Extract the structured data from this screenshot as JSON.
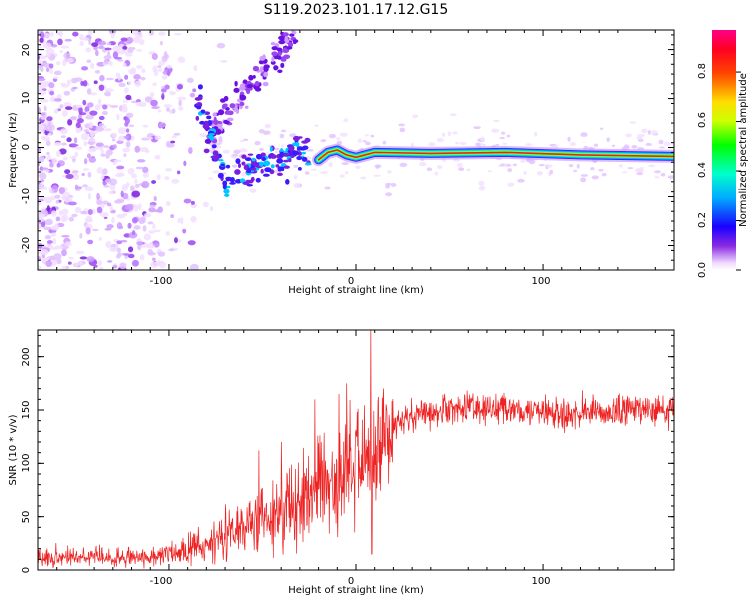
{
  "figure": {
    "title": "S119.2023.101.17.12.G15"
  },
  "chart_data": [
    {
      "type": "heatmap",
      "xlabel": "Height of straight line (km)",
      "ylabel": "Frequency (Hz)",
      "xlim": [
        -170,
        170
      ],
      "ylim": [
        -25,
        24
      ],
      "xticks": [
        -100,
        0,
        100
      ],
      "xtick_labels": [
        "-100",
        "0",
        "100"
      ],
      "yticks": [
        -20,
        -10,
        0,
        10,
        20
      ],
      "ytick_labels": [
        "-20",
        "-10",
        "0",
        "10",
        "20"
      ],
      "colorbar": {
        "label": "Normalized spectral amplitude",
        "range": [
          0.0,
          0.97
        ],
        "ticks": [
          0.0,
          0.2,
          0.4,
          0.6,
          0.8
        ],
        "tick_labels": [
          "0.0",
          "0.2",
          "0.4",
          "0.6",
          "0.8"
        ]
      },
      "ridge": [
        {
          "x": -20,
          "y": -2.5
        },
        {
          "x": -15,
          "y": -1
        },
        {
          "x": -10,
          "y": -0.5
        },
        {
          "x": -5,
          "y": -1.5
        },
        {
          "x": 0,
          "y": -2
        },
        {
          "x": 10,
          "y": -1
        },
        {
          "x": 40,
          "y": -1.2
        },
        {
          "x": 80,
          "y": -1
        },
        {
          "x": 120,
          "y": -1.5
        },
        {
          "x": 170,
          "y": -1.8
        }
      ]
    },
    {
      "type": "line",
      "xlabel": "Height of straight line (km)",
      "ylabel": "SNR (10 * v/v)",
      "xlim": [
        -170,
        170
      ],
      "ylim": [
        0,
        225
      ],
      "xticks": [
        -100,
        0,
        100
      ],
      "xtick_labels": [
        "-100",
        "0",
        "100"
      ],
      "yticks": [
        0,
        50,
        100,
        150,
        200
      ],
      "ytick_labels": [
        "0",
        "50",
        "100",
        "150",
        "200"
      ],
      "color": "#ee2222",
      "series": [
        {
          "x": [
            -170,
            -150,
            -130,
            -110,
            -100,
            -90,
            -80,
            -70,
            -60,
            -50,
            -40,
            -30,
            -20,
            -10,
            0,
            10,
            20,
            30,
            40,
            50,
            60,
            70,
            80,
            100,
            120,
            140,
            160,
            170
          ],
          "values": [
            12,
            12,
            12,
            13,
            15,
            20,
            25,
            30,
            37,
            45,
            55,
            65,
            75,
            85,
            98,
            115,
            135,
            145,
            150,
            152,
            152,
            152,
            150,
            148,
            147,
            148,
            150,
            152
          ]
        }
      ],
      "spikes": [
        {
          "x": 8,
          "value": 230
        },
        {
          "x": 8.5,
          "value": 15
        },
        {
          "x": -22,
          "value": 160
        },
        {
          "x": -9,
          "value": 165
        },
        {
          "x": -5,
          "value": 175
        },
        {
          "x": -52,
          "value": 112
        },
        {
          "x": -40,
          "value": 120
        }
      ]
    }
  ]
}
